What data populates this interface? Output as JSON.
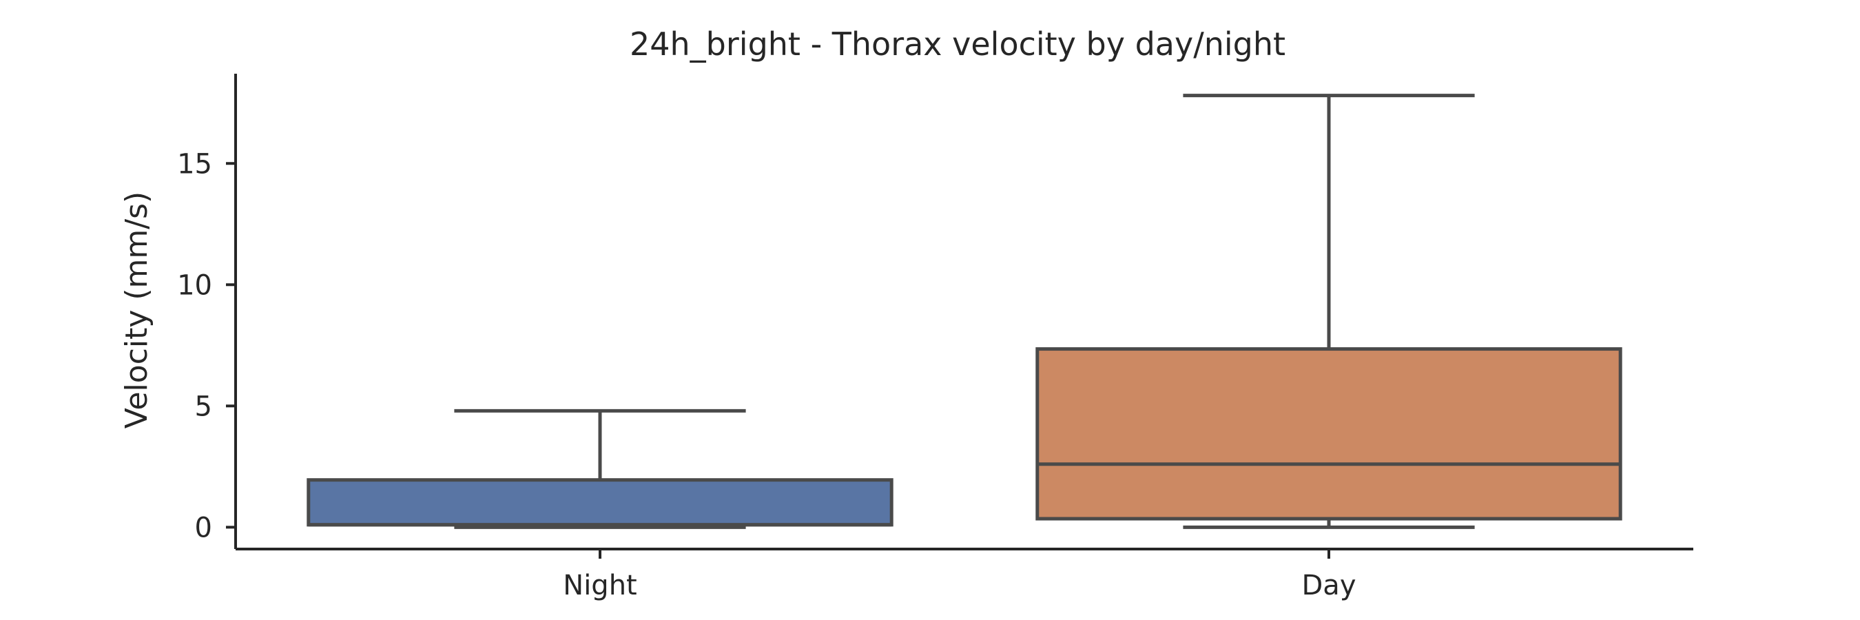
{
  "chart_data": {
    "type": "box",
    "title": "24h_bright - Thorax velocity by day/night",
    "xlabel": "",
    "ylabel": "Velocity (mm/s)",
    "ylim": [
      -0.9,
      18.7
    ],
    "yticks": [
      0,
      5,
      10,
      15
    ],
    "categories": [
      "Night",
      "Day"
    ],
    "boxes": [
      {
        "category": "Night",
        "min": 0.0,
        "q1": 0.1,
        "median": 0.1,
        "q3": 1.95,
        "max": 4.8,
        "color": "#5975a4"
      },
      {
        "category": "Day",
        "min": 0.0,
        "q1": 0.35,
        "median": 2.6,
        "q3": 7.35,
        "max": 17.8,
        "color": "#cc8963"
      }
    ],
    "grid": false,
    "legend": "none"
  }
}
